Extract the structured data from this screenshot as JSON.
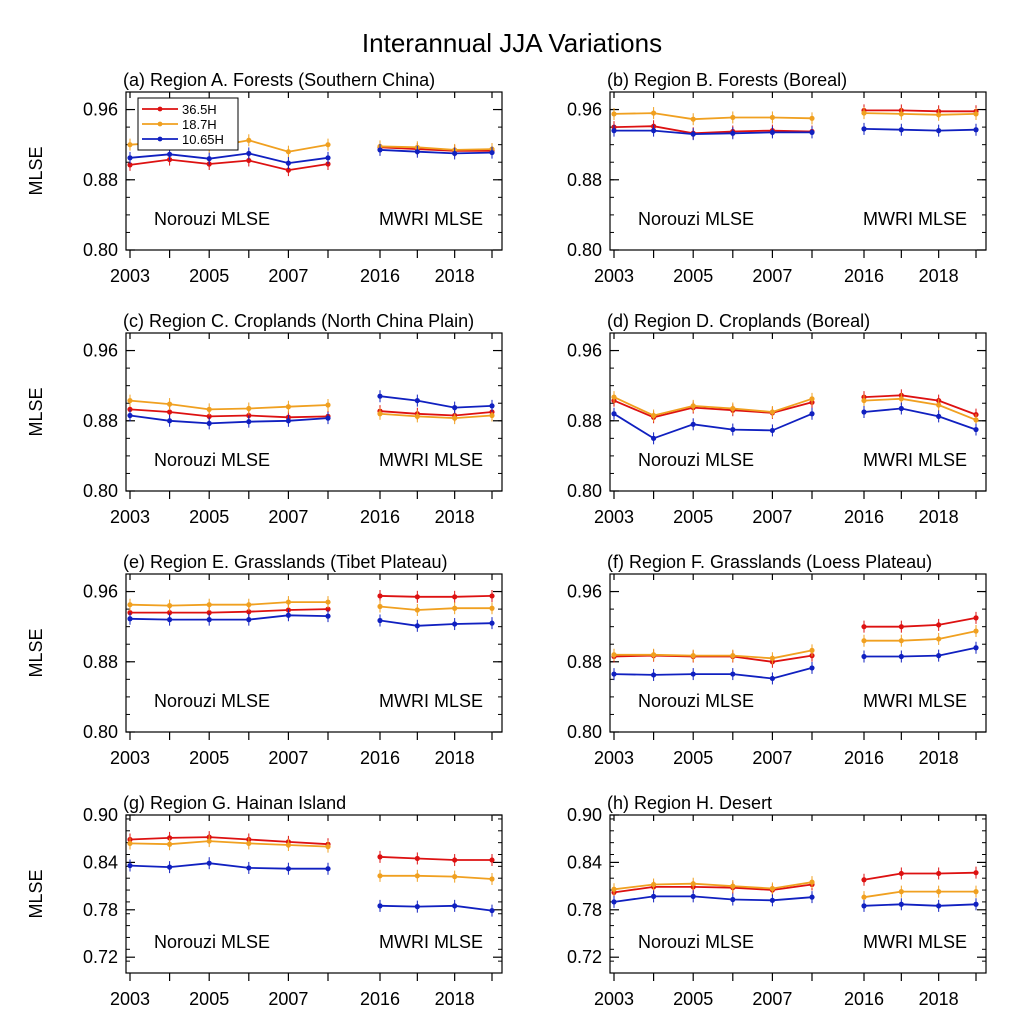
{
  "title": "Interannual JJA  Variations",
  "chart_data": {
    "type": "line",
    "x_segments": [
      {
        "years": [
          2003,
          2004,
          2005,
          2006,
          2007,
          2008
        ],
        "xticks": [
          2003,
          2005,
          2007
        ],
        "label": "Norouzi MLSE"
      },
      {
        "years": [
          2016,
          2017,
          2018,
          2019
        ],
        "xticks": [
          2016,
          2018
        ],
        "label": "MWRI MLSE"
      }
    ],
    "series_names": [
      "36.5H",
      "18.7H",
      "10.65H"
    ],
    "colors": {
      "36.5H": "#dd1111",
      "18.7H": "#f0a020",
      "10.65H": "#1020c0"
    },
    "legend_location": "top-left of panel (a)",
    "panels": [
      {
        "title": "(a) Region A. Forests (Southern China)",
        "ylabel": "MLSE",
        "ylim": [
          0.8,
          0.98
        ],
        "yticks": [
          "0.80",
          "0.88",
          "0.96"
        ],
        "yticks_v": [
          0.8,
          0.88,
          0.96
        ],
        "series": [
          {
            "name": "36.5H",
            "norouzi": [
              0.897,
              0.903,
              0.898,
              0.902,
              0.891,
              0.898
            ],
            "mwri": [
              0.917,
              0.915,
              0.913,
              0.913
            ]
          },
          {
            "name": "18.7H",
            "norouzi": [
              0.92,
              0.923,
              0.917,
              0.925,
              0.912,
              0.92
            ],
            "mwri": [
              0.918,
              0.917,
              0.914,
              0.915
            ]
          },
          {
            "name": "10.65H",
            "norouzi": [
              0.905,
              0.909,
              0.904,
              0.91,
              0.899,
              0.905
            ],
            "mwri": [
              0.914,
              0.912,
              0.91,
              0.911
            ]
          }
        ]
      },
      {
        "title": "(b) Region B. Forests (Boreal)",
        "ylabel": "",
        "ylim": [
          0.8,
          0.98
        ],
        "yticks": [
          "0.80",
          "0.88",
          "0.96"
        ],
        "yticks_v": [
          0.8,
          0.88,
          0.96
        ],
        "series": [
          {
            "name": "36.5H",
            "norouzi": [
              0.94,
              0.941,
              0.933,
              0.935,
              0.936,
              0.935
            ],
            "mwri": [
              0.959,
              0.959,
              0.958,
              0.958
            ]
          },
          {
            "name": "18.7H",
            "norouzi": [
              0.955,
              0.956,
              0.949,
              0.951,
              0.951,
              0.95
            ],
            "mwri": [
              0.956,
              0.955,
              0.954,
              0.955
            ]
          },
          {
            "name": "10.65H",
            "norouzi": [
              0.936,
              0.936,
              0.932,
              0.933,
              0.934,
              0.934
            ],
            "mwri": [
              0.938,
              0.937,
              0.936,
              0.937
            ]
          }
        ]
      },
      {
        "title": "(c) Region C. Croplands (North China Plain)",
        "ylabel": "MLSE",
        "ylim": [
          0.8,
          0.98
        ],
        "yticks": [
          "0.80",
          "0.88",
          "0.96"
        ],
        "yticks_v": [
          0.8,
          0.88,
          0.96
        ],
        "series": [
          {
            "name": "36.5H",
            "norouzi": [
              0.893,
              0.89,
              0.885,
              0.886,
              0.884,
              0.885
            ],
            "mwri": [
              0.891,
              0.888,
              0.886,
              0.89
            ]
          },
          {
            "name": "18.7H",
            "norouzi": [
              0.903,
              0.899,
              0.893,
              0.894,
              0.896,
              0.898
            ],
            "mwri": [
              0.888,
              0.885,
              0.883,
              0.886
            ]
          },
          {
            "name": "10.65H",
            "norouzi": [
              0.886,
              0.88,
              0.877,
              0.879,
              0.88,
              0.883
            ],
            "mwri": [
              0.908,
              0.903,
              0.895,
              0.897
            ]
          }
        ]
      },
      {
        "title": "(d) Region D. Croplands (Boreal)",
        "ylabel": "",
        "ylim": [
          0.8,
          0.98
        ],
        "yticks": [
          "0.80",
          "0.88",
          "0.96"
        ],
        "yticks_v": [
          0.8,
          0.88,
          0.96
        ],
        "series": [
          {
            "name": "36.5H",
            "norouzi": [
              0.903,
              0.884,
              0.895,
              0.892,
              0.889,
              0.901
            ],
            "mwri": [
              0.907,
              0.909,
              0.903,
              0.887
            ]
          },
          {
            "name": "18.7H",
            "norouzi": [
              0.907,
              0.886,
              0.897,
              0.894,
              0.89,
              0.905
            ],
            "mwri": [
              0.903,
              0.905,
              0.898,
              0.881
            ]
          },
          {
            "name": "10.65H",
            "norouzi": [
              0.888,
              0.86,
              0.876,
              0.87,
              0.869,
              0.888
            ],
            "mwri": [
              0.89,
              0.894,
              0.885,
              0.87
            ]
          }
        ]
      },
      {
        "title": "(e) Region E. Grasslands (Tibet Plateau)",
        "ylabel": "MLSE",
        "ylim": [
          0.8,
          0.98
        ],
        "yticks": [
          "0.80",
          "0.88",
          "0.96"
        ],
        "yticks_v": [
          0.8,
          0.88,
          0.96
        ],
        "series": [
          {
            "name": "36.5H",
            "norouzi": [
              0.936,
              0.936,
              0.936,
              0.937,
              0.939,
              0.94
            ],
            "mwri": [
              0.955,
              0.954,
              0.954,
              0.955
            ]
          },
          {
            "name": "18.7H",
            "norouzi": [
              0.945,
              0.944,
              0.945,
              0.945,
              0.948,
              0.948
            ],
            "mwri": [
              0.943,
              0.939,
              0.941,
              0.941
            ]
          },
          {
            "name": "10.65H",
            "norouzi": [
              0.929,
              0.928,
              0.928,
              0.928,
              0.933,
              0.932
            ],
            "mwri": [
              0.927,
              0.921,
              0.923,
              0.924
            ]
          }
        ]
      },
      {
        "title": "(f) Region F. Grasslands (Loess Plateau)",
        "ylabel": "",
        "ylim": [
          0.8,
          0.98
        ],
        "yticks": [
          "0.80",
          "0.88",
          "0.96"
        ],
        "yticks_v": [
          0.8,
          0.88,
          0.96
        ],
        "series": [
          {
            "name": "36.5H",
            "norouzi": [
              0.886,
              0.887,
              0.886,
              0.886,
              0.88,
              0.887
            ],
            "mwri": [
              0.92,
              0.92,
              0.922,
              0.93
            ]
          },
          {
            "name": "18.7H",
            "norouzi": [
              0.888,
              0.888,
              0.887,
              0.887,
              0.884,
              0.893
            ],
            "mwri": [
              0.904,
              0.904,
              0.906,
              0.915
            ]
          },
          {
            "name": "10.65H",
            "norouzi": [
              0.866,
              0.865,
              0.866,
              0.866,
              0.861,
              0.873
            ],
            "mwri": [
              0.886,
              0.886,
              0.887,
              0.896
            ]
          }
        ]
      },
      {
        "title": "(g) Region G. Hainan Island",
        "ylabel": "MLSE",
        "ylim": [
          0.7,
          0.9
        ],
        "yticks": [
          "0.72",
          "0.78",
          "0.84",
          "0.90"
        ],
        "yticks_v": [
          0.72,
          0.78,
          0.84,
          0.9
        ],
        "series": [
          {
            "name": "36.5H",
            "norouzi": [
              0.869,
              0.871,
              0.872,
              0.869,
              0.866,
              0.863
            ],
            "mwri": [
              0.847,
              0.845,
              0.843,
              0.843
            ]
          },
          {
            "name": "18.7H",
            "norouzi": [
              0.864,
              0.863,
              0.867,
              0.864,
              0.862,
              0.86
            ],
            "mwri": [
              0.823,
              0.823,
              0.822,
              0.819
            ]
          },
          {
            "name": "10.65H",
            "norouzi": [
              0.836,
              0.834,
              0.839,
              0.833,
              0.832,
              0.832
            ],
            "mwri": [
              0.785,
              0.784,
              0.785,
              0.779
            ]
          }
        ]
      },
      {
        "title": "(h) Region H. Desert",
        "ylabel": "",
        "ylim": [
          0.7,
          0.9
        ],
        "yticks": [
          "0.72",
          "0.78",
          "0.84",
          "0.90"
        ],
        "yticks_v": [
          0.72,
          0.78,
          0.84,
          0.9
        ],
        "series": [
          {
            "name": "36.5H",
            "norouzi": [
              0.802,
              0.809,
              0.809,
              0.808,
              0.805,
              0.812
            ],
            "mwri": [
              0.818,
              0.826,
              0.826,
              0.827
            ]
          },
          {
            "name": "18.7H",
            "norouzi": [
              0.806,
              0.812,
              0.813,
              0.81,
              0.807,
              0.815
            ],
            "mwri": [
              0.796,
              0.803,
              0.803,
              0.803
            ]
          },
          {
            "name": "10.65H",
            "norouzi": [
              0.79,
              0.797,
              0.797,
              0.793,
              0.792,
              0.796
            ],
            "mwri": [
              0.785,
              0.787,
              0.785,
              0.787
            ]
          }
        ]
      }
    ]
  }
}
